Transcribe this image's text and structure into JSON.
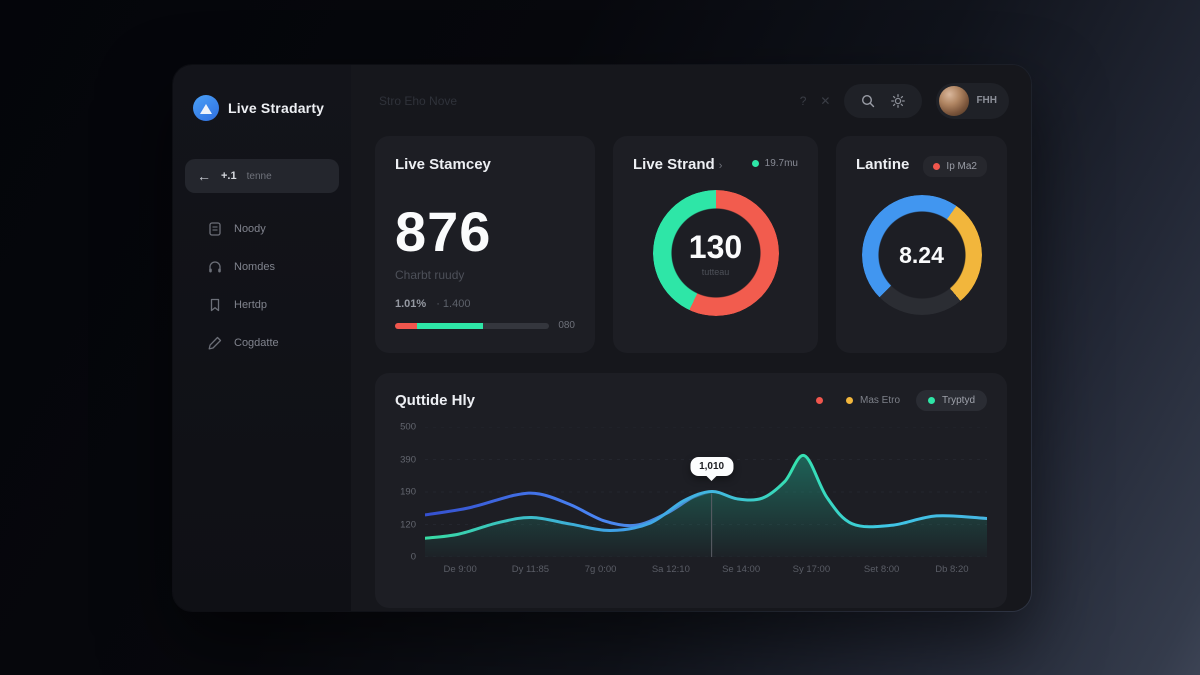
{
  "app": {
    "logo_text": "Live Stradarty"
  },
  "sidebar": {
    "active": {
      "back_glyph": "←",
      "label_bold": "+.1",
      "label": "tenne"
    },
    "items": [
      {
        "label": "Noody",
        "icon": "document-icon"
      },
      {
        "label": "Nomdes",
        "icon": "headset-icon"
      },
      {
        "label": "Hertdp",
        "icon": "bookmark-icon"
      },
      {
        "label": "Cogdatte",
        "icon": "pen-icon"
      }
    ]
  },
  "topbar": {
    "title": "Stro Eho Nove",
    "help_glyph": "?",
    "close_glyph": "✕",
    "user_name": "FHH"
  },
  "cards": {
    "stat": {
      "title": "Live Stamcey",
      "value": "876",
      "subtitle": "Charbt ruudy",
      "stat_primary": "1.01%",
      "stat_secondary": "· 1.400",
      "progress": {
        "red_pct": 14,
        "green_pct": 43,
        "red": "#f0564d",
        "green": "#2ee6a7",
        "label": "080"
      }
    },
    "donut": {
      "title": "Live Strand",
      "chevron": "›",
      "legend_label": "19.7mu",
      "legend_color": "#2ee6a7",
      "value": "130",
      "sublabel": "tutteau",
      "segments": [
        {
          "color": "#f25c4e",
          "from": 0,
          "to": 205
        },
        {
          "color": "#2ee6a7",
          "from": 205,
          "to": 360
        }
      ]
    },
    "gauge": {
      "title": "Lantine",
      "badge_label": "Ip Ma2",
      "badge_dot": "#f0564d",
      "value": "8.24",
      "segments": [
        {
          "color": "#4196f0",
          "from": 0,
          "to": 35
        },
        {
          "color": "#f2b63c",
          "from": 35,
          "to": 140
        },
        {
          "color": "#2b2d33",
          "from": 140,
          "to": 225
        },
        {
          "color": "#4196f0",
          "from": 225,
          "to": 360
        }
      ]
    }
  },
  "chart_card": {
    "title": "Quttide Hly",
    "legend": [
      {
        "label": "",
        "color": "#f0564d"
      },
      {
        "label": "Mas Etro",
        "color": "#f2b63c"
      },
      {
        "label": "Tryptyd",
        "color": "#2ee6a7",
        "pill": true
      }
    ]
  },
  "chart_data": {
    "type": "area",
    "title": "Quttide Hly",
    "ylim": [
      0,
      500
    ],
    "yticks": [
      "500",
      "390",
      "190",
      "120",
      "0"
    ],
    "xticks": [
      "De 9:00",
      "Dy 11:85",
      "7g 0:00",
      "Sa 12:10",
      "Se 14:00",
      "Sy 17:00",
      "Set 8:00",
      "Db 8:20"
    ],
    "grid": "dashed-horizontal",
    "legend_position": "top-right",
    "series": [
      {
        "name": "teal-area",
        "type": "area",
        "color_start": "#38dca4",
        "color_end": "#46b5e2",
        "x": [
          0,
          0.06,
          0.13,
          0.19,
          0.26,
          0.33,
          0.4,
          0.46,
          0.51,
          0.555,
          0.6,
          0.64,
          0.675,
          0.715,
          0.76,
          0.83,
          0.91,
          1.0
        ],
        "values": [
          72,
          88,
          132,
          152,
          126,
          102,
          130,
          216,
          252,
          224,
          226,
          290,
          390,
          230,
          128,
          122,
          158,
          148
        ]
      },
      {
        "name": "blue-line",
        "type": "line",
        "color": "#3f6df0",
        "x": [
          0,
          0.08,
          0.16,
          0.205,
          0.26,
          0.32,
          0.375,
          0.43,
          0.475,
          0.51
        ],
        "values": [
          162,
          190,
          238,
          242,
          200,
          138,
          122,
          168,
          228,
          252
        ]
      }
    ],
    "tooltip": {
      "x_frac": 0.51,
      "y_value": 252,
      "value": "1,010"
    }
  }
}
